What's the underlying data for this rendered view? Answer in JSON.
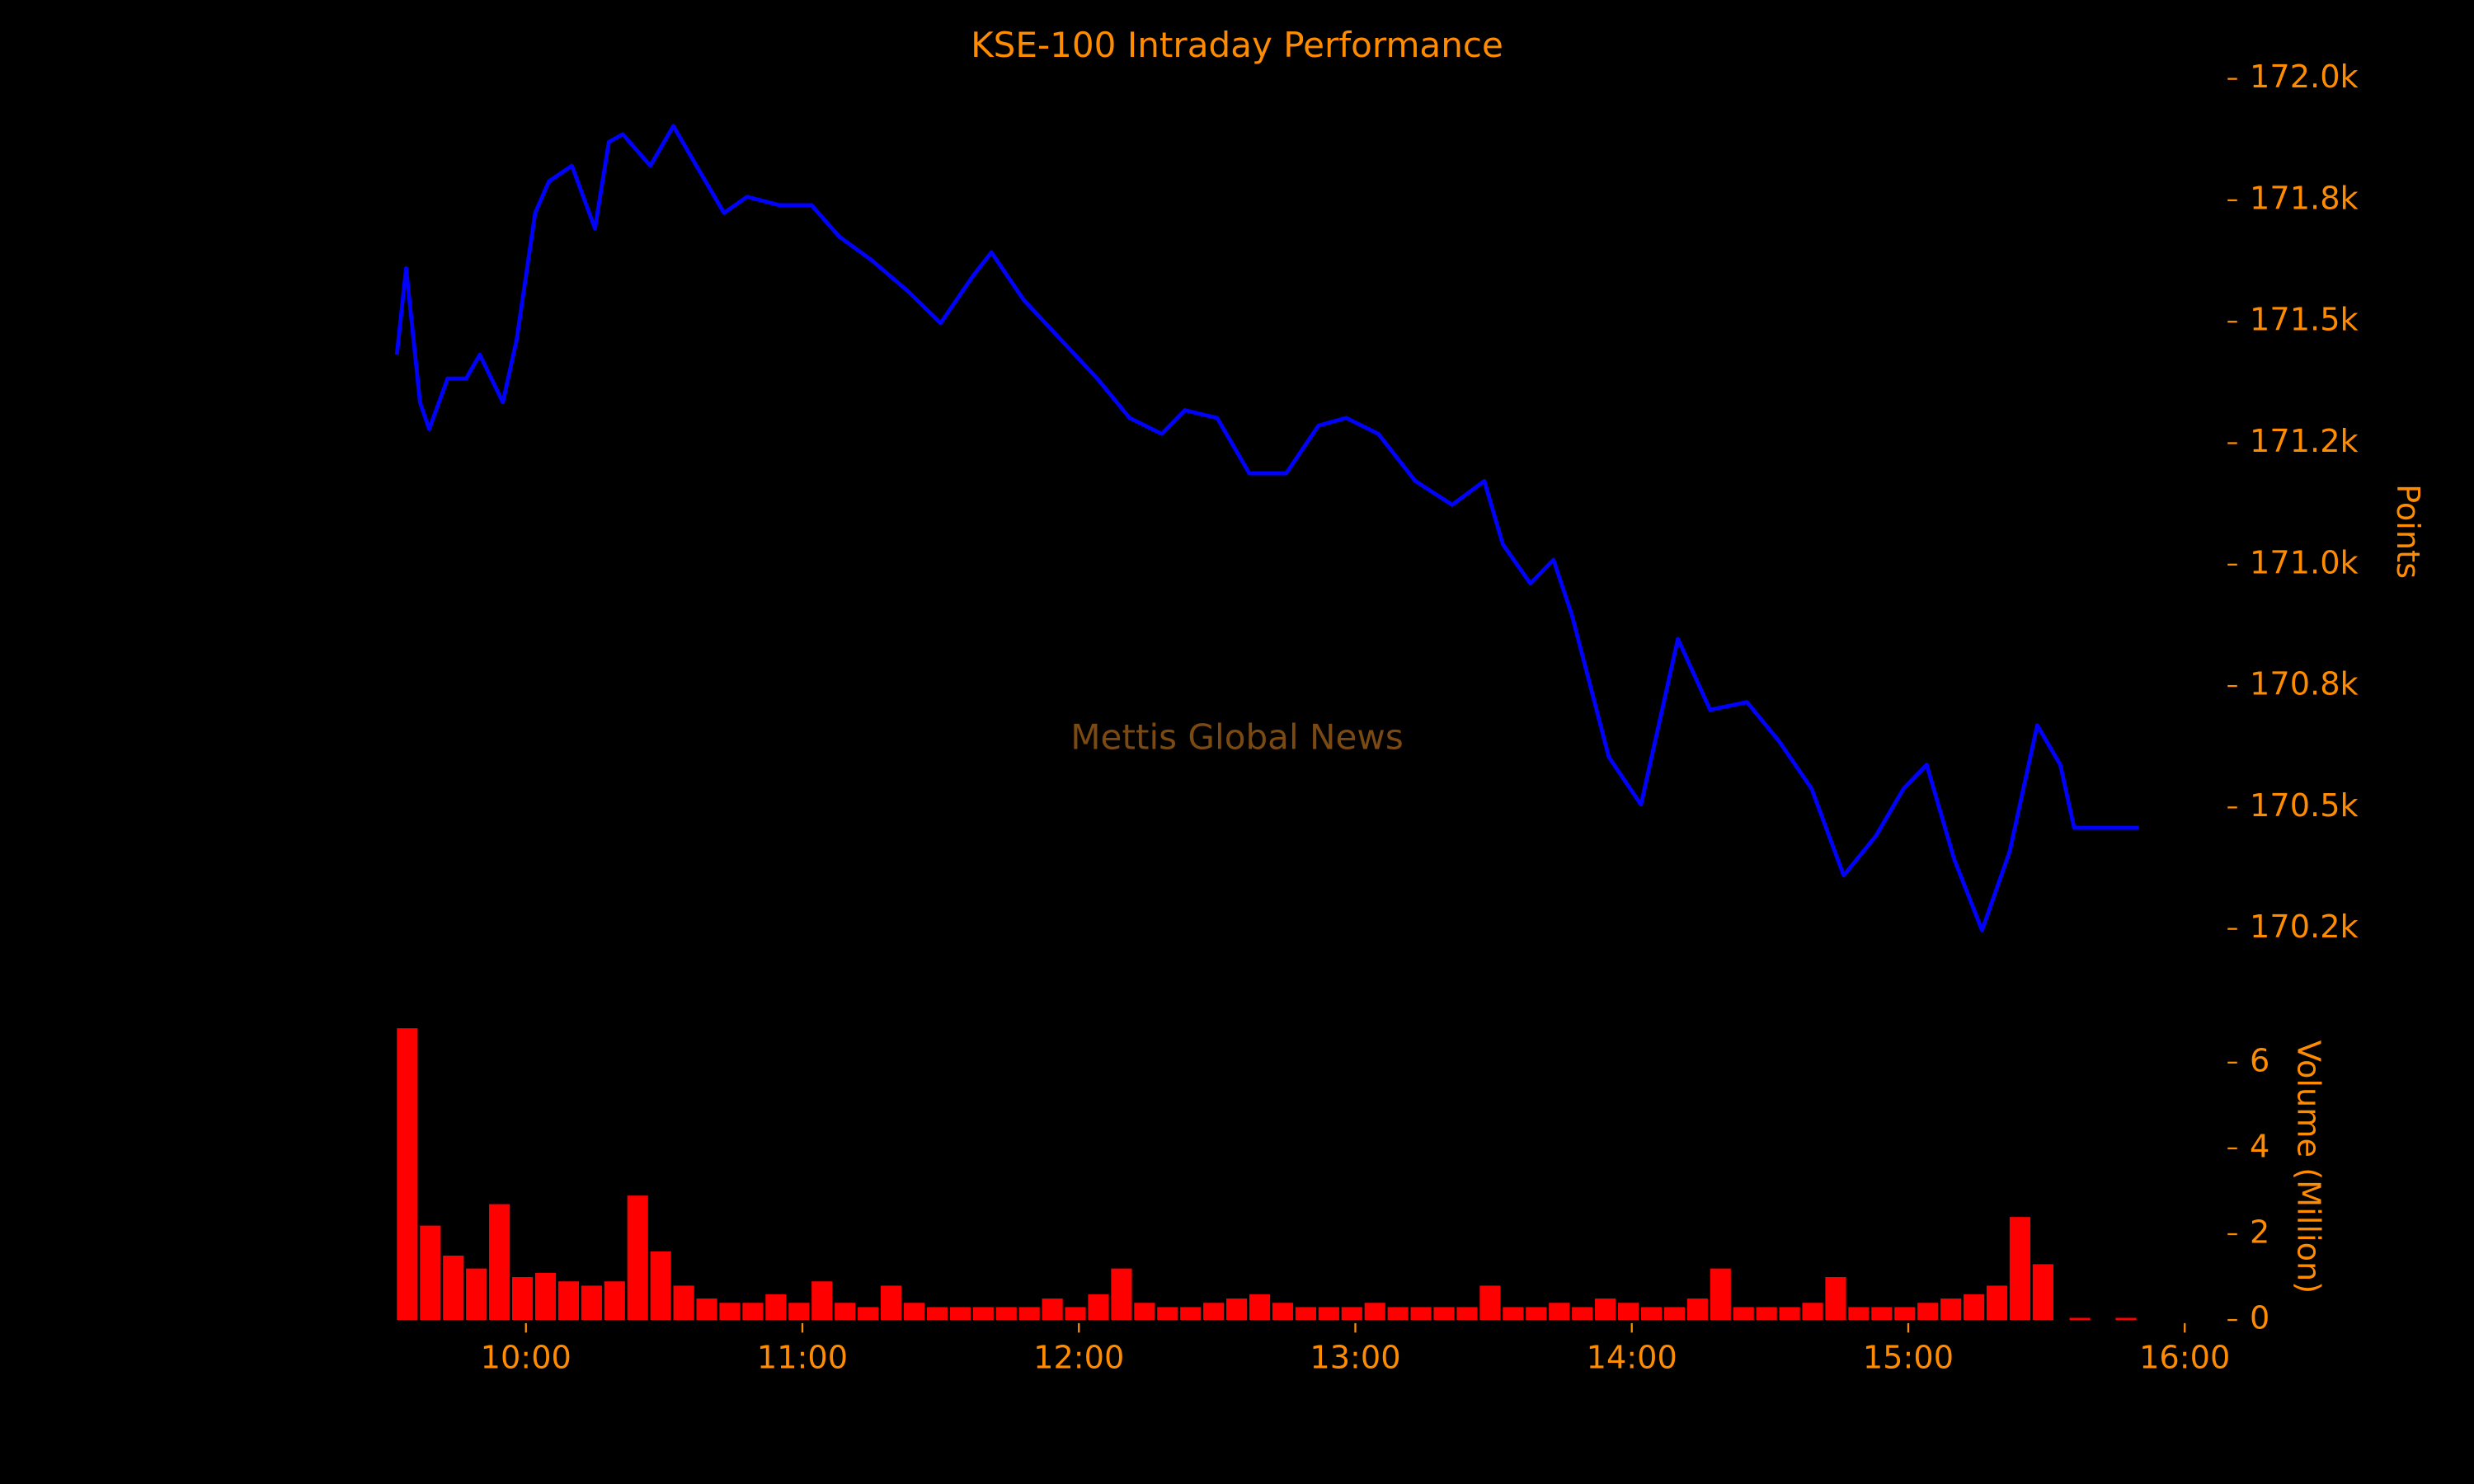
{
  "chart_data": [
    {
      "type": "line",
      "title": "KSE-100 Intraday Performance",
      "ylabel": "Points",
      "annotation": "Mettis Global News",
      "color": "#0000ff",
      "x": [
        572,
        574,
        577,
        579,
        583,
        587,
        590,
        595,
        598,
        602,
        605,
        610,
        615,
        618,
        621,
        627,
        632,
        637,
        643,
        648,
        655,
        662,
        668,
        675,
        683,
        690,
        697,
        701,
        708,
        716,
        724,
        731,
        738,
        743,
        750,
        757,
        765,
        772,
        778,
        785,
        793,
        801,
        808,
        812,
        818,
        823,
        827,
        835,
        842,
        850,
        857,
        865,
        872,
        879,
        886,
        893,
        899,
        904,
        910,
        916,
        922,
        928,
        933,
        936,
        950
      ],
      "values": [
        171432,
        171610,
        171334,
        171279,
        171383,
        171383,
        171432,
        171334,
        171464,
        171724,
        171789,
        171821,
        171692,
        171870,
        171886,
        171821,
        171903,
        171821,
        171724,
        171757,
        171740,
        171740,
        171675,
        171627,
        171562,
        171497,
        171594,
        171643,
        171545,
        171464,
        171383,
        171302,
        171269,
        171318,
        171302,
        171188,
        171188,
        171286,
        171302,
        171269,
        171172,
        171123,
        171172,
        171042,
        170961,
        171010,
        170896,
        170604,
        170506,
        170847,
        170701,
        170717,
        170636,
        170539,
        170360,
        170442,
        170539,
        170588,
        170393,
        170247,
        170409,
        170669,
        170588,
        170458,
        170458
      ],
      "xlim": [
        565,
        970
      ],
      "ylim": [
        170150,
        172050
      ],
      "yticks": [
        {
          "value": 172000,
          "label": "172.0k"
        },
        {
          "value": 171750,
          "label": "171.8k"
        },
        {
          "value": 171500,
          "label": "171.5k"
        },
        {
          "value": 171250,
          "label": "171.2k"
        },
        {
          "value": 171000,
          "label": "171.0k"
        },
        {
          "value": 170750,
          "label": "170.8k"
        },
        {
          "value": 170500,
          "label": "170.5k"
        },
        {
          "value": 170250,
          "label": "170.2k"
        }
      ]
    },
    {
      "type": "bar",
      "ylabel": "Volume (Million)",
      "color": "#ff0000",
      "x": [
        572,
        577,
        582,
        587,
        592,
        597,
        602,
        607,
        612,
        617,
        622,
        627,
        632,
        637,
        642,
        647,
        652,
        657,
        662,
        667,
        672,
        677,
        682,
        687,
        692,
        697,
        702,
        707,
        712,
        717,
        722,
        727,
        732,
        737,
        742,
        747,
        752,
        757,
        762,
        767,
        772,
        777,
        782,
        787,
        792,
        797,
        802,
        807,
        812,
        817,
        822,
        827,
        832,
        837,
        842,
        847,
        852,
        857,
        862,
        867,
        872,
        877,
        882,
        887,
        892,
        897,
        902,
        907,
        912,
        917,
        922,
        927,
        935,
        945
      ],
      "values": [
        6.8,
        2.2,
        1.5,
        1.2,
        2.7,
        1.0,
        1.1,
        0.9,
        0.8,
        0.9,
        2.9,
        1.6,
        0.8,
        0.5,
        0.4,
        0.4,
        0.6,
        0.4,
        0.9,
        0.4,
        0.3,
        0.8,
        0.4,
        0.3,
        0.3,
        0.3,
        0.3,
        0.3,
        0.5,
        0.3,
        0.6,
        1.2,
        0.4,
        0.3,
        0.3,
        0.4,
        0.5,
        0.6,
        0.4,
        0.3,
        0.3,
        0.3,
        0.4,
        0.3,
        0.3,
        0.3,
        0.3,
        0.8,
        0.3,
        0.3,
        0.4,
        0.3,
        0.5,
        0.4,
        0.3,
        0.3,
        0.5,
        1.2,
        0.3,
        0.3,
        0.3,
        0.4,
        1.0,
        0.3,
        0.3,
        0.3,
        0.4,
        0.5,
        0.6,
        0.8,
        2.4,
        1.3,
        0.05,
        0.05
      ],
      "xlim": [
        565,
        970
      ],
      "ylim": [
        0,
        6.9
      ],
      "yticks": [
        0,
        2,
        4,
        6
      ],
      "xticks": [
        {
          "value": 600,
          "label": "10:00"
        },
        {
          "value": 660,
          "label": "11:00"
        },
        {
          "value": 720,
          "label": "12:00"
        },
        {
          "value": 780,
          "label": "13:00"
        },
        {
          "value": 840,
          "label": "14:00"
        },
        {
          "value": 900,
          "label": "15:00"
        },
        {
          "value": 960,
          "label": "16:00"
        }
      ]
    }
  ]
}
